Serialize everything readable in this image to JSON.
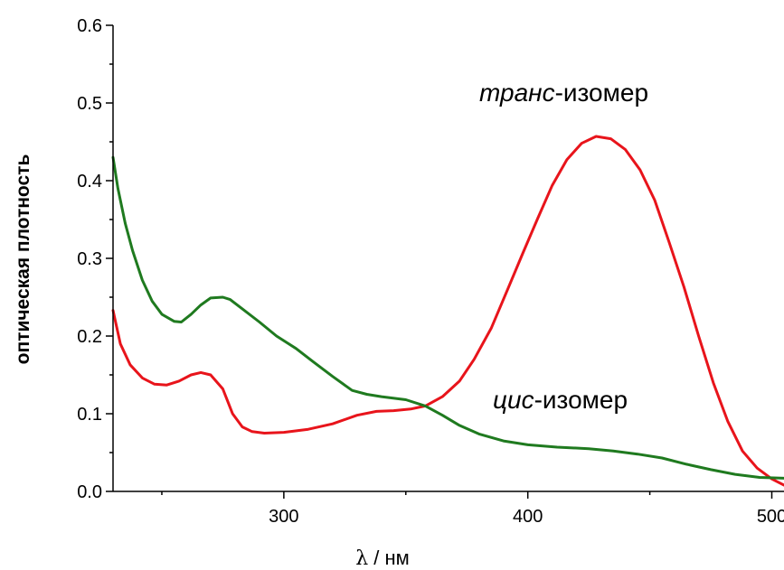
{
  "chart_data": {
    "type": "line",
    "title": "",
    "xlabel": {
      "symbol": "λ",
      "unit": "/ нм"
    },
    "ylabel": "оптическая плотность",
    "xlim": [
      230,
      505
    ],
    "ylim": [
      0,
      0.6
    ],
    "x_ticks": [
      300,
      400,
      500
    ],
    "x_ticks_minor": [
      250,
      350,
      450
    ],
    "y_ticks": [
      "0.0",
      "0.1",
      "0.2",
      "0.3",
      "0.4",
      "0.5",
      "0.6"
    ],
    "y_ticks_minor": [
      0.05,
      0.15,
      0.25,
      0.35,
      0.45,
      0.55
    ],
    "grid": false,
    "legend": "none",
    "series": [
      {
        "name": "транс-изомер",
        "label_italic": "транс",
        "label_rest": "-изомер",
        "color": "#e8141b",
        "points": [
          [
            230,
            0.233
          ],
          [
            233,
            0.19
          ],
          [
            237,
            0.163
          ],
          [
            242,
            0.146
          ],
          [
            247,
            0.138
          ],
          [
            252,
            0.137
          ],
          [
            257,
            0.142
          ],
          [
            262,
            0.15
          ],
          [
            266,
            0.153
          ],
          [
            270,
            0.15
          ],
          [
            275,
            0.132
          ],
          [
            279,
            0.1
          ],
          [
            283,
            0.083
          ],
          [
            287,
            0.077
          ],
          [
            292,
            0.075
          ],
          [
            300,
            0.076
          ],
          [
            310,
            0.08
          ],
          [
            320,
            0.087
          ],
          [
            330,
            0.098
          ],
          [
            338,
            0.103
          ],
          [
            345,
            0.104
          ],
          [
            352,
            0.106
          ],
          [
            358,
            0.11
          ],
          [
            365,
            0.122
          ],
          [
            372,
            0.142
          ],
          [
            378,
            0.17
          ],
          [
            385,
            0.21
          ],
          [
            392,
            0.262
          ],
          [
            398,
            0.307
          ],
          [
            404,
            0.351
          ],
          [
            410,
            0.394
          ],
          [
            416,
            0.427
          ],
          [
            422,
            0.448
          ],
          [
            428,
            0.457
          ],
          [
            434,
            0.454
          ],
          [
            440,
            0.44
          ],
          [
            446,
            0.414
          ],
          [
            452,
            0.375
          ],
          [
            458,
            0.32
          ],
          [
            464,
            0.263
          ],
          [
            470,
            0.2
          ],
          [
            476,
            0.14
          ],
          [
            482,
            0.09
          ],
          [
            488,
            0.052
          ],
          [
            494,
            0.03
          ],
          [
            500,
            0.016
          ],
          [
            505,
            0.008
          ]
        ]
      },
      {
        "name": "цис-изомер",
        "label_italic": "цис",
        "label_rest": "-изомер",
        "color": "#1f7a1f",
        "points": [
          [
            230,
            0.43
          ],
          [
            232,
            0.39
          ],
          [
            235,
            0.345
          ],
          [
            238,
            0.31
          ],
          [
            242,
            0.272
          ],
          [
            246,
            0.245
          ],
          [
            250,
            0.228
          ],
          [
            255,
            0.219
          ],
          [
            258,
            0.218
          ],
          [
            262,
            0.228
          ],
          [
            266,
            0.24
          ],
          [
            270,
            0.249
          ],
          [
            275,
            0.25
          ],
          [
            278,
            0.247
          ],
          [
            283,
            0.235
          ],
          [
            290,
            0.218
          ],
          [
            297,
            0.2
          ],
          [
            305,
            0.184
          ],
          [
            312,
            0.167
          ],
          [
            320,
            0.148
          ],
          [
            328,
            0.13
          ],
          [
            334,
            0.125
          ],
          [
            340,
            0.122
          ],
          [
            350,
            0.118
          ],
          [
            358,
            0.11
          ],
          [
            365,
            0.098
          ],
          [
            372,
            0.085
          ],
          [
            380,
            0.074
          ],
          [
            390,
            0.065
          ],
          [
            400,
            0.06
          ],
          [
            412,
            0.057
          ],
          [
            425,
            0.055
          ],
          [
            435,
            0.052
          ],
          [
            445,
            0.048
          ],
          [
            455,
            0.043
          ],
          [
            465,
            0.035
          ],
          [
            475,
            0.028
          ],
          [
            485,
            0.022
          ],
          [
            495,
            0.018
          ],
          [
            505,
            0.017
          ]
        ]
      }
    ]
  }
}
